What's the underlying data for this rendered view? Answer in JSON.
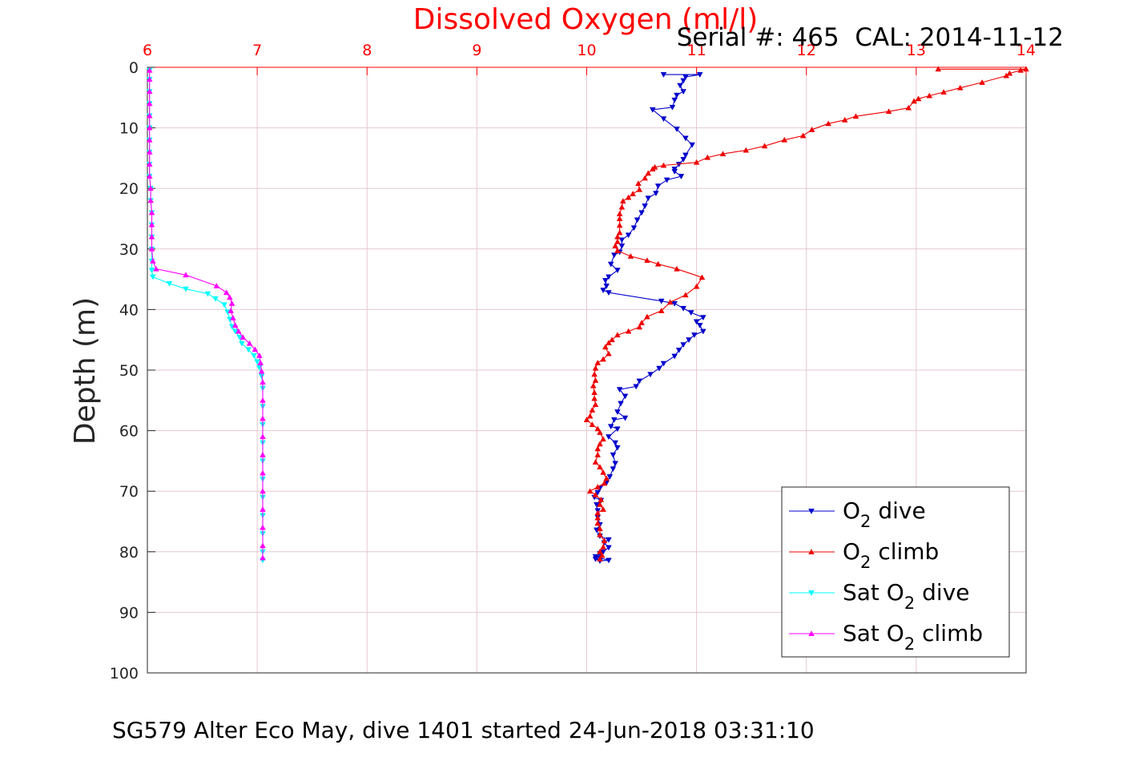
{
  "chart_data": {
    "type": "line",
    "title": "Dissolved Oxygen (ml/l)",
    "subtitle": "Serial #: 465  CAL: 2014-11-12",
    "ylabel": "Depth (m)",
    "xlabel": "SG579 Alter Eco May, dive 1401 started 24-Jun-2018 03:31:10",
    "xlim": [
      6,
      14
    ],
    "ylim": [
      0,
      100
    ],
    "y_reversed": true,
    "x_axis_position": "top",
    "x_ticks": [
      "6",
      "7",
      "8",
      "9",
      "10",
      "11",
      "12",
      "13",
      "14"
    ],
    "y_ticks": [
      "0",
      "10",
      "20",
      "30",
      "40",
      "50",
      "60",
      "70",
      "80",
      "90",
      "100"
    ],
    "grid": true,
    "legend_position": "bottom-right",
    "colors": {
      "title": "#ff0000",
      "x_axis": "#ff0000",
      "grid": "#e6c8cf"
    },
    "series": [
      {
        "name": "O2 dive",
        "legend": {
          "prefix": "O",
          "sub": "2",
          "suffix": " dive"
        },
        "color": "#0000cc",
        "marker": "triangle-down",
        "points": [
          [
            10.7,
            1.2
          ],
          [
            11.03,
            1.2
          ],
          [
            10.9,
            1.6
          ],
          [
            10.88,
            2.2
          ],
          [
            10.85,
            3.0
          ],
          [
            10.88,
            4.0
          ],
          [
            10.82,
            4.6
          ],
          [
            10.8,
            5.4
          ],
          [
            10.78,
            6.6
          ],
          [
            10.6,
            7.0
          ],
          [
            10.7,
            8.5
          ],
          [
            10.82,
            10.2
          ],
          [
            10.9,
            11.7
          ],
          [
            10.96,
            12.8
          ],
          [
            10.9,
            14.5
          ],
          [
            10.88,
            15.2
          ],
          [
            10.84,
            16.0
          ],
          [
            10.8,
            16.8
          ],
          [
            10.8,
            17.2
          ],
          [
            10.86,
            18.0
          ],
          [
            10.73,
            18.6
          ],
          [
            10.65,
            19.6
          ],
          [
            10.63,
            20.8
          ],
          [
            10.56,
            21.6
          ],
          [
            10.53,
            22.9
          ],
          [
            10.5,
            24.0
          ],
          [
            10.46,
            25.2
          ],
          [
            10.43,
            26.5
          ],
          [
            10.38,
            27.7
          ],
          [
            10.32,
            28.5
          ],
          [
            10.32,
            29.5
          ],
          [
            10.3,
            30.5
          ],
          [
            10.25,
            31.0
          ],
          [
            10.22,
            32.5
          ],
          [
            10.28,
            33.5
          ],
          [
            10.2,
            34.6
          ],
          [
            10.17,
            35.2
          ],
          [
            10.18,
            36.1
          ],
          [
            10.15,
            36.8
          ],
          [
            10.2,
            37.2
          ],
          [
            10.68,
            38.6
          ],
          [
            10.8,
            39.0
          ],
          [
            10.88,
            39.8
          ],
          [
            10.95,
            40.5
          ],
          [
            11.06,
            41.3
          ],
          [
            11.0,
            42.0
          ],
          [
            11.03,
            42.6
          ],
          [
            11.06,
            43.6
          ],
          [
            10.98,
            44.2
          ],
          [
            10.93,
            45.0
          ],
          [
            10.88,
            45.8
          ],
          [
            10.84,
            46.7
          ],
          [
            10.8,
            47.7
          ],
          [
            10.7,
            48.9
          ],
          [
            10.66,
            49.7
          ],
          [
            10.58,
            50.7
          ],
          [
            10.48,
            51.8
          ],
          [
            10.45,
            52.7
          ],
          [
            10.3,
            53.2
          ],
          [
            10.35,
            54.3
          ],
          [
            10.31,
            55.5
          ],
          [
            10.28,
            56.9
          ],
          [
            10.35,
            57.9
          ],
          [
            10.25,
            58.2
          ],
          [
            10.22,
            59.3
          ],
          [
            10.28,
            59.7
          ],
          [
            10.2,
            61.0
          ],
          [
            10.26,
            62.0
          ],
          [
            10.28,
            62.8
          ],
          [
            10.24,
            64.0
          ],
          [
            10.26,
            65.4
          ],
          [
            10.24,
            66.3
          ],
          [
            10.21,
            67.6
          ],
          [
            10.18,
            68.6
          ],
          [
            10.12,
            69.5
          ],
          [
            10.1,
            70.2
          ],
          [
            10.07,
            71.0
          ],
          [
            10.13,
            71.5
          ],
          [
            10.09,
            72.2
          ],
          [
            10.1,
            73.2
          ],
          [
            10.1,
            74.3
          ],
          [
            10.12,
            75.5
          ],
          [
            10.09,
            76.4
          ],
          [
            10.12,
            77.4
          ],
          [
            10.2,
            78.0
          ],
          [
            10.16,
            78.5
          ],
          [
            10.2,
            79.3
          ],
          [
            10.15,
            80.0
          ],
          [
            10.12,
            80.3
          ],
          [
            10.08,
            80.8
          ],
          [
            10.12,
            81.0
          ],
          [
            10.2,
            81.4
          ],
          [
            10.12,
            81.5
          ],
          [
            10.08,
            81.2
          ]
        ]
      },
      {
        "name": "O2 climb",
        "legend": {
          "prefix": "O",
          "sub": "2",
          "suffix": " climb"
        },
        "color": "#ee0000",
        "marker": "triangle-up",
        "points": [
          [
            13.2,
            0.3
          ],
          [
            14.0,
            0.3
          ],
          [
            13.95,
            0.5
          ],
          [
            13.85,
            1.0
          ],
          [
            13.82,
            1.4
          ],
          [
            13.6,
            2.5
          ],
          [
            13.4,
            3.4
          ],
          [
            13.25,
            4.1
          ],
          [
            13.12,
            4.7
          ],
          [
            13.02,
            5.2
          ],
          [
            12.98,
            5.6
          ],
          [
            12.93,
            6.7
          ],
          [
            12.75,
            7.3
          ],
          [
            12.45,
            8.1
          ],
          [
            12.35,
            8.7
          ],
          [
            12.2,
            9.3
          ],
          [
            12.05,
            10.3
          ],
          [
            11.97,
            11.3
          ],
          [
            11.8,
            12.0
          ],
          [
            11.62,
            13.0
          ],
          [
            11.45,
            13.7
          ],
          [
            11.24,
            14.3
          ],
          [
            11.1,
            14.9
          ],
          [
            11.0,
            15.7
          ],
          [
            10.7,
            16.2
          ],
          [
            10.62,
            16.5
          ],
          [
            10.6,
            16.8
          ],
          [
            10.56,
            17.5
          ],
          [
            10.53,
            18.3
          ],
          [
            10.47,
            19.2
          ],
          [
            10.48,
            20.2
          ],
          [
            10.42,
            20.9
          ],
          [
            10.38,
            21.5
          ],
          [
            10.33,
            22.1
          ],
          [
            10.32,
            23.1
          ],
          [
            10.3,
            24.2
          ],
          [
            10.3,
            25.0
          ],
          [
            10.3,
            26.1
          ],
          [
            10.3,
            27.3
          ],
          [
            10.28,
            28.0
          ],
          [
            10.28,
            28.8
          ],
          [
            10.26,
            29.5
          ],
          [
            10.28,
            30.3
          ],
          [
            10.4,
            31.2
          ],
          [
            10.55,
            31.9
          ],
          [
            10.65,
            32.5
          ],
          [
            10.82,
            33.3
          ],
          [
            11.05,
            34.7
          ],
          [
            11.0,
            36.2
          ],
          [
            10.9,
            37.6
          ],
          [
            10.76,
            38.8
          ],
          [
            10.68,
            40.2
          ],
          [
            10.55,
            41.2
          ],
          [
            10.5,
            42.2
          ],
          [
            10.48,
            42.9
          ],
          [
            10.38,
            43.6
          ],
          [
            10.28,
            44.2
          ],
          [
            10.23,
            45.0
          ],
          [
            10.2,
            45.5
          ],
          [
            10.17,
            46.2
          ],
          [
            10.2,
            47.3
          ],
          [
            10.15,
            48.2
          ],
          [
            10.1,
            48.8
          ],
          [
            10.08,
            49.7
          ],
          [
            10.07,
            50.7
          ],
          [
            10.08,
            51.7
          ],
          [
            10.06,
            52.6
          ],
          [
            10.07,
            53.7
          ],
          [
            10.07,
            54.7
          ],
          [
            10.08,
            55.7
          ],
          [
            10.05,
            56.6
          ],
          [
            10.03,
            57.6
          ],
          [
            10.0,
            58.2
          ],
          [
            10.05,
            59.0
          ],
          [
            10.1,
            59.7
          ],
          [
            10.12,
            60.3
          ],
          [
            10.15,
            61.4
          ],
          [
            10.12,
            62.2
          ],
          [
            10.1,
            63.0
          ],
          [
            10.1,
            64.0
          ],
          [
            10.08,
            65.2
          ],
          [
            10.12,
            66.0
          ],
          [
            10.15,
            66.9
          ],
          [
            10.18,
            67.9
          ],
          [
            10.16,
            68.7
          ],
          [
            10.1,
            69.3
          ],
          [
            10.03,
            70.0
          ],
          [
            10.08,
            70.6
          ],
          [
            10.13,
            71.4
          ],
          [
            10.12,
            72.2
          ],
          [
            10.15,
            73.0
          ],
          [
            10.1,
            73.6
          ],
          [
            10.1,
            74.4
          ],
          [
            10.1,
            75.3
          ],
          [
            10.12,
            76.2
          ],
          [
            10.12,
            77.2
          ],
          [
            10.16,
            78.2
          ],
          [
            10.15,
            79.2
          ],
          [
            10.12,
            80.0
          ],
          [
            10.14,
            80.6
          ],
          [
            10.12,
            81.2
          ]
        ]
      },
      {
        "name": "Sat O2 dive",
        "legend": {
          "prefix": "Sat O",
          "sub": "2",
          "suffix": " dive"
        },
        "color": "#00ffff",
        "marker": "triangle-down",
        "points": [
          [
            6.02,
            0.5
          ],
          [
            6.02,
            2.0
          ],
          [
            6.02,
            4.0
          ],
          [
            6.02,
            6.0
          ],
          [
            6.02,
            8.0
          ],
          [
            6.02,
            10.0
          ],
          [
            6.02,
            12.0
          ],
          [
            6.02,
            14.0
          ],
          [
            6.02,
            16.0
          ],
          [
            6.02,
            18.0
          ],
          [
            6.03,
            20.0
          ],
          [
            6.03,
            22.0
          ],
          [
            6.04,
            24.0
          ],
          [
            6.04,
            26.0
          ],
          [
            6.04,
            28.0
          ],
          [
            6.04,
            30.0
          ],
          [
            6.04,
            32.0
          ],
          [
            6.04,
            33.5
          ],
          [
            6.05,
            34.6
          ],
          [
            6.2,
            35.7
          ],
          [
            6.35,
            36.6
          ],
          [
            6.55,
            37.4
          ],
          [
            6.62,
            38.2
          ],
          [
            6.7,
            39.2
          ],
          [
            6.73,
            40.4
          ],
          [
            6.75,
            41.6
          ],
          [
            6.77,
            42.8
          ],
          [
            6.8,
            43.6
          ],
          [
            6.84,
            44.6
          ],
          [
            6.86,
            45.6
          ],
          [
            6.92,
            46.6
          ],
          [
            6.97,
            47.6
          ],
          [
            7.0,
            48.6
          ],
          [
            7.02,
            49.6
          ],
          [
            7.04,
            51.0
          ],
          [
            7.05,
            53.0
          ],
          [
            7.05,
            56.0
          ],
          [
            7.05,
            59.0
          ],
          [
            7.05,
            62.0
          ],
          [
            7.05,
            65.0
          ],
          [
            7.05,
            68.0
          ],
          [
            7.05,
            71.0
          ],
          [
            7.05,
            74.0
          ],
          [
            7.05,
            77.0
          ],
          [
            7.05,
            80.0
          ],
          [
            7.05,
            81.4
          ]
        ]
      },
      {
        "name": "Sat O2 climb",
        "legend": {
          "prefix": "Sat O",
          "sub": "2",
          "suffix": " climb"
        },
        "color": "#ff00ff",
        "marker": "triangle-up",
        "points": [
          [
            6.02,
            0.5
          ],
          [
            6.02,
            2.0
          ],
          [
            6.02,
            4.0
          ],
          [
            6.02,
            6.0
          ],
          [
            6.02,
            8.0
          ],
          [
            6.02,
            10.0
          ],
          [
            6.02,
            12.0
          ],
          [
            6.02,
            14.0
          ],
          [
            6.02,
            16.0
          ],
          [
            6.02,
            18.0
          ],
          [
            6.03,
            20.0
          ],
          [
            6.03,
            22.0
          ],
          [
            6.04,
            24.0
          ],
          [
            6.04,
            26.0
          ],
          [
            6.04,
            28.0
          ],
          [
            6.04,
            30.0
          ],
          [
            6.05,
            32.0
          ],
          [
            6.08,
            33.3
          ],
          [
            6.35,
            34.3
          ],
          [
            6.63,
            36.1
          ],
          [
            6.72,
            37.2
          ],
          [
            6.75,
            38.0
          ],
          [
            6.77,
            39.0
          ],
          [
            6.76,
            40.2
          ],
          [
            6.78,
            41.4
          ],
          [
            6.8,
            42.6
          ],
          [
            6.83,
            43.6
          ],
          [
            6.87,
            44.6
          ],
          [
            6.93,
            45.6
          ],
          [
            6.98,
            46.6
          ],
          [
            7.02,
            47.6
          ],
          [
            7.03,
            48.8
          ],
          [
            7.04,
            50.2
          ],
          [
            7.05,
            52.0
          ],
          [
            7.05,
            55.0
          ],
          [
            7.05,
            58.0
          ],
          [
            7.05,
            61.0
          ],
          [
            7.05,
            64.0
          ],
          [
            7.05,
            67.0
          ],
          [
            7.05,
            70.0
          ],
          [
            7.05,
            73.0
          ],
          [
            7.05,
            76.0
          ],
          [
            7.05,
            79.0
          ],
          [
            7.05,
            81.0
          ]
        ]
      }
    ]
  }
}
